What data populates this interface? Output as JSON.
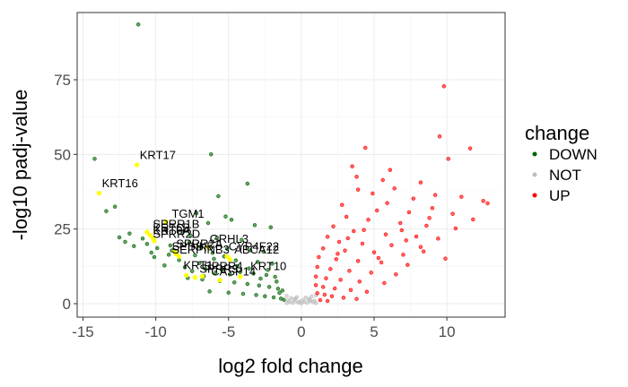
{
  "chart_data": {
    "type": "scatter",
    "title": "",
    "xlabel": "log2 fold change",
    "ylabel": "-log10 padj-value",
    "xlim": [
      -15.4,
      14.0
    ],
    "ylim": [
      -4.5,
      97.5
    ],
    "x_ticks": [
      -15,
      -10,
      -5,
      0,
      5,
      10
    ],
    "x_tick_labels": [
      "-15",
      "-10",
      "-5",
      "0",
      "5",
      "10"
    ],
    "y_ticks": [
      0,
      25,
      50,
      75
    ],
    "y_tick_labels": [
      "0",
      "25",
      "50",
      "75"
    ],
    "grid": true,
    "legend": {
      "title": "change",
      "position": "right",
      "items": [
        {
          "label": "DOWN",
          "color": "#006400"
        },
        {
          "label": "NOT",
          "color": "#bebebe"
        },
        {
          "label": "UP",
          "color": "#ff0000"
        }
      ]
    },
    "series": [
      {
        "name": "DOWN",
        "color": "#006400",
        "points": [
          [
            -11.2,
            93.5
          ],
          [
            -14.2,
            48.5
          ],
          [
            -6.2,
            50.0
          ],
          [
            -3.7,
            40.2
          ],
          [
            -5.7,
            36.0
          ],
          [
            -12.8,
            32.5
          ],
          [
            -13.4,
            31.0
          ],
          [
            -7.2,
            30.3
          ],
          [
            -5.2,
            29.2
          ],
          [
            -4.8,
            28.1
          ],
          [
            -6.4,
            27.0
          ],
          [
            -3.2,
            26.3
          ],
          [
            -2.1,
            25.6
          ],
          [
            -9.3,
            24.9
          ],
          [
            -8.1,
            24.2
          ],
          [
            -11.8,
            23.5
          ],
          [
            -7.6,
            22.8
          ],
          [
            -5.8,
            22.1
          ],
          [
            -4.1,
            21.4
          ],
          [
            -12.1,
            20.7
          ],
          [
            -10.6,
            20.0
          ],
          [
            -9.0,
            19.5
          ],
          [
            -6.9,
            19.0
          ],
          [
            -5.1,
            18.4
          ],
          [
            -3.5,
            17.9
          ],
          [
            -2.6,
            17.4
          ],
          [
            -8.6,
            16.8
          ],
          [
            -7.3,
            16.2
          ],
          [
            -10.1,
            15.6
          ],
          [
            -6.0,
            15.0
          ],
          [
            -4.5,
            14.5
          ],
          [
            -3.0,
            14.0
          ],
          [
            -2.0,
            13.4
          ],
          [
            -9.4,
            12.8
          ],
          [
            -8.0,
            12.2
          ],
          [
            -6.6,
            11.7
          ],
          [
            -5.4,
            11.2
          ],
          [
            -4.2,
            10.6
          ],
          [
            -3.3,
            10.1
          ],
          [
            -2.4,
            9.6
          ],
          [
            -1.8,
            9.0
          ],
          [
            -7.8,
            8.6
          ],
          [
            -6.8,
            8.1
          ],
          [
            -5.6,
            7.6
          ],
          [
            -4.6,
            7.1
          ],
          [
            -3.7,
            6.6
          ],
          [
            -2.9,
            6.1
          ],
          [
            -2.2,
            5.6
          ],
          [
            -1.6,
            5.0
          ],
          [
            -1.3,
            4.4
          ],
          [
            -6.3,
            4.1
          ],
          [
            -5.0,
            3.7
          ],
          [
            -4.0,
            3.3
          ],
          [
            -3.1,
            2.9
          ],
          [
            -2.5,
            2.5
          ],
          [
            -1.9,
            2.1
          ],
          [
            -1.4,
            1.7
          ],
          [
            -1.2,
            1.3
          ],
          [
            -7.0,
            13.6
          ],
          [
            -8.9,
            17.8
          ],
          [
            -10.9,
            21.8
          ],
          [
            -9.9,
            18.6
          ],
          [
            -11.5,
            19.3
          ],
          [
            -12.5,
            22.2
          ],
          [
            -7.7,
            20.4
          ],
          [
            -6.1,
            17.0
          ],
          [
            -5.3,
            15.8
          ],
          [
            -4.4,
            12.6
          ],
          [
            -3.6,
            11.8
          ],
          [
            -2.8,
            8.4
          ],
          [
            -4.9,
            9.8
          ],
          [
            -5.9,
            10.4
          ],
          [
            -6.7,
            9.2
          ],
          [
            -7.5,
            10.9
          ],
          [
            -8.4,
            14.6
          ],
          [
            -9.1,
            16.4
          ],
          [
            -10.3,
            17.1
          ],
          [
            -2.3,
            11.3
          ],
          [
            -1.7,
            7.4
          ],
          [
            -1.5,
            3.6
          ]
        ]
      },
      {
        "name": "NOT",
        "color": "#bebebe",
        "points": [
          [
            -1.0,
            0.2
          ],
          [
            -0.8,
            0.5
          ],
          [
            -0.6,
            0.3
          ],
          [
            -0.4,
            0.8
          ],
          [
            -0.2,
            0.4
          ],
          [
            0.0,
            0.1
          ],
          [
            0.2,
            0.6
          ],
          [
            0.4,
            0.3
          ],
          [
            0.6,
            0.9
          ],
          [
            0.8,
            0.5
          ],
          [
            1.0,
            0.2
          ],
          [
            -0.9,
            1.1
          ],
          [
            -0.5,
            1.4
          ],
          [
            0.1,
            1.2
          ],
          [
            0.5,
            1.6
          ],
          [
            0.9,
            1.0
          ],
          [
            -0.7,
            1.9
          ],
          [
            -0.3,
            2.2
          ],
          [
            0.3,
            2.0
          ],
          [
            0.7,
            2.4
          ],
          [
            -1.0,
            2.6
          ],
          [
            1.0,
            2.8
          ],
          [
            -0.1,
            0.7
          ],
          [
            -0.4,
            1.7
          ],
          [
            0.6,
            1.3
          ]
        ]
      },
      {
        "name": "UP",
        "color": "#ff0000",
        "points": [
          [
            9.8,
            72.8
          ],
          [
            9.5,
            56.0
          ],
          [
            11.6,
            52.0
          ],
          [
            10.1,
            48.5
          ],
          [
            4.4,
            52.2
          ],
          [
            3.5,
            46.0
          ],
          [
            3.8,
            42.5
          ],
          [
            5.6,
            41.4
          ],
          [
            8.2,
            40.6
          ],
          [
            6.4,
            38.6
          ],
          [
            12.5,
            34.4
          ],
          [
            11.0,
            35.8
          ],
          [
            9.0,
            32.0
          ],
          [
            7.4,
            30.6
          ],
          [
            5.2,
            31.2
          ],
          [
            2.8,
            33.1
          ],
          [
            3.1,
            29.1
          ],
          [
            4.6,
            28.1
          ],
          [
            6.8,
            27.0
          ],
          [
            8.6,
            26.1
          ],
          [
            10.6,
            25.2
          ],
          [
            2.2,
            25.9
          ],
          [
            3.6,
            24.3
          ],
          [
            5.8,
            23.2
          ],
          [
            7.9,
            22.5
          ],
          [
            9.4,
            21.8
          ],
          [
            1.8,
            22.4
          ],
          [
            2.6,
            20.7
          ],
          [
            4.2,
            20.1
          ],
          [
            6.2,
            19.6
          ],
          [
            8.2,
            19.0
          ],
          [
            1.5,
            18.5
          ],
          [
            3.0,
            17.8
          ],
          [
            5.0,
            17.2
          ],
          [
            7.0,
            16.4
          ],
          [
            1.2,
            15.6
          ],
          [
            2.4,
            14.9
          ],
          [
            3.9,
            14.3
          ],
          [
            5.5,
            13.8
          ],
          [
            7.3,
            13.0
          ],
          [
            1.1,
            12.3
          ],
          [
            2.0,
            11.6
          ],
          [
            3.3,
            11.0
          ],
          [
            4.8,
            10.4
          ],
          [
            6.5,
            9.8
          ],
          [
            1.0,
            9.1
          ],
          [
            1.7,
            8.5
          ],
          [
            2.7,
            8.0
          ],
          [
            4.0,
            7.4
          ],
          [
            5.7,
            6.9
          ],
          [
            1.0,
            6.2
          ],
          [
            1.5,
            5.6
          ],
          [
            2.3,
            5.1
          ],
          [
            3.4,
            4.6
          ],
          [
            4.5,
            4.0
          ],
          [
            1.1,
            3.5
          ],
          [
            1.6,
            3.0
          ],
          [
            2.1,
            2.5
          ],
          [
            2.9,
            2.0
          ],
          [
            3.8,
            1.6
          ],
          [
            1.3,
            1.2
          ],
          [
            1.8,
            0.9
          ],
          [
            6.9,
            24.6
          ],
          [
            8.8,
            28.7
          ],
          [
            10.4,
            30.1
          ],
          [
            11.8,
            28.2
          ],
          [
            12.8,
            33.6
          ],
          [
            7.7,
            35.2
          ],
          [
            5.9,
            33.7
          ],
          [
            4.9,
            36.9
          ],
          [
            3.9,
            38.2
          ],
          [
            9.2,
            36.4
          ],
          [
            6.1,
            44.8
          ],
          [
            7.2,
            21.2
          ],
          [
            8.4,
            17.5
          ],
          [
            9.9,
            15.1
          ],
          [
            4.3,
            24.7
          ],
          [
            3.2,
            21.9
          ],
          [
            2.5,
            16.7
          ],
          [
            5.3,
            15.3
          ]
        ]
      }
    ],
    "highlighted_genes": [
      {
        "label": "KRT17",
        "x": -11.3,
        "y": 46.5
      },
      {
        "label": "KRT16",
        "x": -13.9,
        "y": 37.0
      },
      {
        "label": "TGM1",
        "x": -9.3,
        "y": 27.5
      },
      {
        "label": "SPRR1B",
        "x": -10.6,
        "y": 24.0
      },
      {
        "label": "KRT6B",
        "x": -10.4,
        "y": 23.0
      },
      {
        "label": "KRT6A",
        "x": -10.2,
        "y": 22.0
      },
      {
        "label": "SPRR2D",
        "x": -10.1,
        "y": 21.0
      },
      {
        "label": "GRHL3",
        "x": -6.4,
        "y": 19.0
      },
      {
        "label": "SPRR2A",
        "x": -8.7,
        "y": 17.5
      },
      {
        "label": "SPINK5",
        "x": -8.6,
        "y": 16.6
      },
      {
        "label": "SERPINB3",
        "x": -8.4,
        "y": 15.8
      },
      {
        "label": "ABCA12",
        "x": -4.9,
        "y": 14.8
      },
      {
        "label": "CYP4F22",
        "x": -5.1,
        "y": 15.8
      },
      {
        "label": "KRT1",
        "x": -7.9,
        "y": 9.5
      },
      {
        "label": "KRT10",
        "x": -4.2,
        "y": 9.0
      },
      {
        "label": "SPRR4",
        "x": -6.8,
        "y": 9.2
      },
      {
        "label": "SPRR3",
        "x": -7.3,
        "y": 8.8
      },
      {
        "label": "CASP14",
        "x": -5.6,
        "y": 7.9
      }
    ],
    "highlight_color": "#ffff00"
  },
  "gene_label_positions": {
    "KRT17": [
      -11.1,
      48.5
    ],
    "KRT16": [
      -13.7,
      39.0
    ],
    "TGM1": [
      -8.9,
      28.8
    ],
    "SPRR1B": [
      -10.2,
      25.3
    ],
    "KRT6B": [
      -10.2,
      24.2
    ],
    "KRT6A": [
      -10.2,
      23.1
    ],
    "SPRR2D": [
      -10.2,
      22.0
    ],
    "GRHL3": [
      -6.3,
      20.4
    ],
    "SPRR2A": [
      -8.6,
      18.8
    ],
    "SPINK5": [
      -8.9,
      17.8
    ],
    "SERPINB3": [
      -8.9,
      16.8
    ],
    "CYP4F22": [
      -5.0,
      17.8
    ],
    "ABCA12": [
      -4.6,
      16.8
    ],
    "KRT1": [
      -8.1,
      11.6
    ],
    "KRT10": [
      -3.5,
      11.2
    ],
    "SPRR4": [
      -6.7,
      11.2
    ],
    "SPRR3": [
      -7.0,
      10.3
    ],
    "CASP14": [
      -6.2,
      9.5
    ]
  }
}
